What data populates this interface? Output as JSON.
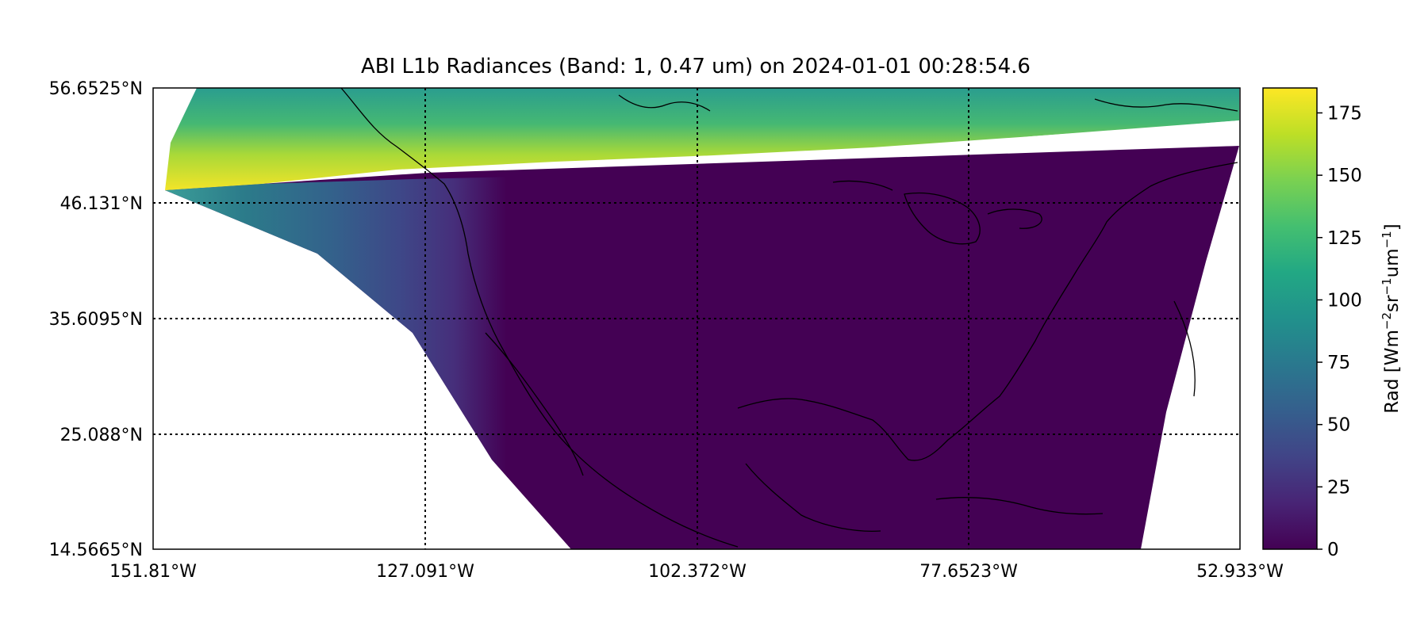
{
  "chart_data": {
    "type": "heatmap",
    "title": "ABI L1b Radiances (Band: 1, 0.47 um) on 2024-01-01 00:28:54.6",
    "map": {
      "lon_range": [
        -151.81,
        -52.933
      ],
      "lat_range": [
        14.5665,
        56.6525
      ],
      "lon_tick_labels": [
        "151.81°W",
        "127.091°W",
        "102.372°W",
        "77.6523°W",
        "52.933°W"
      ],
      "lon_tick_values": [
        -151.81,
        -127.091,
        -102.372,
        -77.6523,
        -52.933
      ],
      "lat_tick_labels": [
        "56.6525°N",
        "46.131°N",
        "35.6095°N",
        "25.088°N",
        "14.5665°N"
      ],
      "lat_tick_values": [
        56.6525,
        46.131,
        35.6095,
        25.088,
        14.5665
      ],
      "gridlines": "dotted",
      "coastlines": true
    },
    "colorbar": {
      "label_prefix": "Rad [Wm",
      "label_exp1": "−2",
      "label_mid1": "sr",
      "label_exp2": "−1",
      "label_mid2": "um",
      "label_exp3": "−1",
      "label_suffix": "]",
      "range": [
        0,
        185
      ],
      "ticks": [
        0,
        25,
        50,
        75,
        100,
        125,
        150,
        175
      ],
      "colormap": "viridis",
      "position": "right"
    },
    "field_summary": {
      "swath_top_band_value": 175,
      "west_land_value": 40,
      "night_region_value": 0
    }
  }
}
